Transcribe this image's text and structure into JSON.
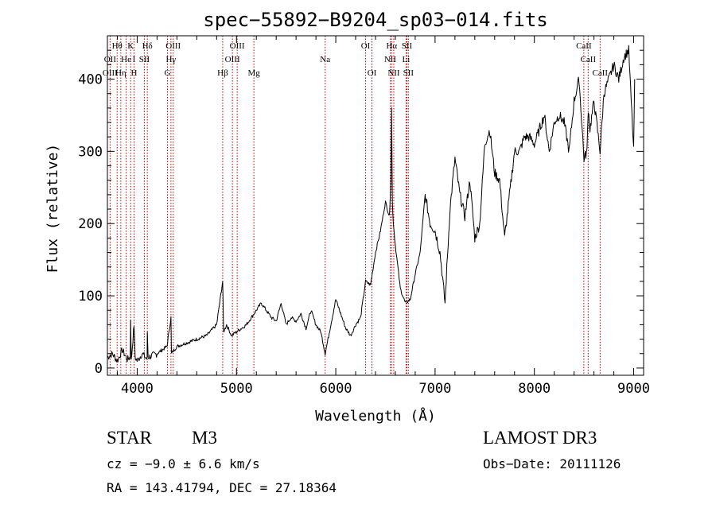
{
  "colors": {
    "spectrum": "#000000",
    "line_marker": "#c00000",
    "axis": "#000000",
    "background": "#ffffff"
  },
  "chart_data": {
    "type": "line",
    "title": "spec−55892−B9204_sp03−014.fits",
    "xlabel": "Wavelength (Å)",
    "ylabel": "Flux (relative)",
    "xlim": [
      3700,
      9100
    ],
    "ylim": [
      -10,
      460
    ],
    "x_ticks": [
      4000,
      5000,
      6000,
      7000,
      8000,
      9000
    ],
    "x_tick_labels": [
      "4000",
      "5000",
      "6000",
      "7000",
      "8000",
      "9000"
    ],
    "y_ticks": [
      0,
      100,
      200,
      300,
      400
    ],
    "y_tick_labels": [
      "0",
      "100",
      "200",
      "300",
      "400"
    ],
    "series": [
      {
        "name": "spectrum",
        "x": [
          3700,
          3750,
          3800,
          3850,
          3900,
          3930,
          3934,
          3940,
          3968,
          3980,
          4000,
          4050,
          4100,
          4102,
          4110,
          4200,
          4300,
          4340,
          4345,
          4400,
          4500,
          4600,
          4700,
          4800,
          4861,
          4870,
          4900,
          4950,
          5000,
          5050,
          5100,
          5150,
          5200,
          5250,
          5300,
          5350,
          5400,
          5450,
          5500,
          5550,
          5600,
          5650,
          5700,
          5750,
          5800,
          5850,
          5893,
          5950,
          6000,
          6050,
          6100,
          6150,
          6200,
          6250,
          6300,
          6350,
          6400,
          6450,
          6500,
          6540,
          6555,
          6563,
          6570,
          6580,
          6600,
          6650,
          6700,
          6750,
          6800,
          6850,
          6900,
          6950,
          7000,
          7050,
          7100,
          7150,
          7200,
          7250,
          7300,
          7350,
          7400,
          7450,
          7500,
          7550,
          7600,
          7650,
          7700,
          7750,
          7800,
          7850,
          7900,
          7950,
          8000,
          8050,
          8100,
          8150,
          8200,
          8250,
          8300,
          8350,
          8400,
          8450,
          8500,
          8530,
          8542,
          8560,
          8600,
          8662,
          8700,
          8750,
          8800,
          8850,
          8900,
          8950,
          9000,
          9010
        ],
        "values": [
          15,
          20,
          10,
          25,
          12,
          15,
          70,
          10,
          60,
          15,
          10,
          20,
          12,
          50,
          15,
          20,
          30,
          70,
          20,
          30,
          35,
          40,
          45,
          60,
          120,
          50,
          60,
          45,
          50,
          55,
          60,
          70,
          80,
          90,
          80,
          70,
          65,
          90,
          60,
          70,
          65,
          75,
          55,
          80,
          60,
          50,
          20,
          60,
          95,
          75,
          55,
          45,
          60,
          70,
          120,
          115,
          160,
          190,
          230,
          210,
          260,
          360,
          230,
          200,
          170,
          110,
          90,
          95,
          130,
          160,
          240,
          200,
          190,
          160,
          90,
          220,
          290,
          240,
          210,
          260,
          180,
          200,
          310,
          330,
          270,
          260,
          180,
          240,
          300,
          300,
          320,
          320,
          310,
          330,
          350,
          300,
          340,
          350,
          340,
          300,
          370,
          400,
          290,
          300,
          360,
          330,
          370,
          300,
          380,
          400,
          420,
          400,
          430,
          440,
          300,
          400
        ]
      }
    ],
    "line_labels": [
      {
        "text": "Hθ",
        "x": 3798,
        "row": 0
      },
      {
        "text": "K",
        "x": 3934,
        "row": 0
      },
      {
        "text": "Hδ",
        "x": 4102,
        "row": 0
      },
      {
        "text": "OIII",
        "x": 4363,
        "row": 0
      },
      {
        "text": "OIII",
        "x": 5007,
        "row": 0
      },
      {
        "text": "OI",
        "x": 6300,
        "row": 0
      },
      {
        "text": "Hα",
        "x": 6563,
        "row": 0
      },
      {
        "text": "SII",
        "x": 6716,
        "row": 0
      },
      {
        "text": "CaII",
        "x": 8498,
        "row": 0
      },
      {
        "text": "OII",
        "x": 3727,
        "row": 1
      },
      {
        "text": "He",
        "x": 3889,
        "row": 1
      },
      {
        "text": "I",
        "x": 3968,
        "row": 1
      },
      {
        "text": "SII",
        "x": 4072,
        "row": 1
      },
      {
        "text": "Hγ",
        "x": 4340,
        "row": 1
      },
      {
        "text": "OIII",
        "x": 4959,
        "row": 1
      },
      {
        "text": "Na",
        "x": 5893,
        "row": 1
      },
      {
        "text": "NII",
        "x": 6548,
        "row": 1
      },
      {
        "text": "Li",
        "x": 6708,
        "row": 1
      },
      {
        "text": "CaII",
        "x": 8542,
        "row": 1
      },
      {
        "text": "OIII",
        "x": 3727,
        "row": 2
      },
      {
        "text": "Hη",
        "x": 3835,
        "row": 2
      },
      {
        "text": "H",
        "x": 3968,
        "row": 2
      },
      {
        "text": "G",
        "x": 4305,
        "row": 2
      },
      {
        "text": "Hβ",
        "x": 4861,
        "row": 2
      },
      {
        "text": "Mg",
        "x": 5175,
        "row": 2
      },
      {
        "text": "OI",
        "x": 6364,
        "row": 2
      },
      {
        "text": "NII",
        "x": 6584,
        "row": 2
      },
      {
        "text": "SII",
        "x": 6731,
        "row": 2
      },
      {
        "text": "CaII",
        "x": 8662,
        "row": 2
      }
    ],
    "marker_lines": [
      3727,
      3798,
      3835,
      3889,
      3934,
      3968,
      4072,
      4102,
      4305,
      4340,
      4363,
      4861,
      4959,
      5007,
      5175,
      5893,
      6300,
      6364,
      6548,
      6563,
      6584,
      6708,
      6716,
      6731,
      8498,
      8542,
      8662
    ]
  },
  "footer": {
    "object_class": "STAR",
    "subclass": "M3",
    "survey": "LAMOST DR3",
    "cz": "cz = −9.0 ± 6.6 km/s",
    "obs_date": "Obs−Date: 20111126",
    "coords": "RA = 143.41794, DEC =  27.18364"
  }
}
